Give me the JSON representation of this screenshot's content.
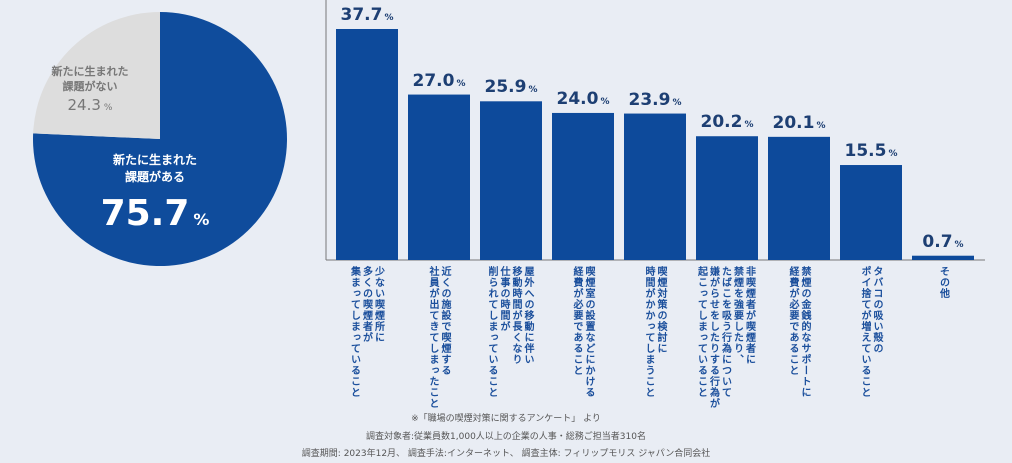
{
  "pie": {
    "slices": [
      {
        "label": "新たに生まれた\n課題がある",
        "line1": "新たに生まれた",
        "line2": "課題がある",
        "value": 75.7,
        "color": "#0f4c9c"
      },
      {
        "label": "新たに生まれた\n課題がない",
        "line1": "新たに生まれた",
        "line2": "課題がない",
        "value": 24.3,
        "color": "#dddddd"
      }
    ],
    "unit": "%"
  },
  "chart_data": {
    "type": "bar",
    "categories": [
      "少ない喫煙所に\n多くの喫煙者が\n集まってしまっていること",
      "近くの施設で喫煙する\n社員が出てきてしまったこと",
      "屋外への移動に伴い\n移動時間が長くなり\n仕事の時間が\n削られてしまっていること",
      "喫煙室の設置などにかける\n経費が必要であること",
      "喫煙対策の検討に\n時間がかかってしまうこと",
      "非喫煙者が喫煙者に\n禁煙を強要したり、\nたばこを吸う行為について\n嫌がらせをしたりする行為が\n起こってしまっていること",
      "禁煙の金銭的なサポートに\n経費が必要であること",
      "タバコの吸い殻の\nポイ捨てが増えていること",
      "その他"
    ],
    "values": [
      37.7,
      27.0,
      25.9,
      24.0,
      23.9,
      20.2,
      20.1,
      15.5,
      0.7
    ],
    "value_labels": [
      "37.7",
      "27.0",
      "25.9",
      "24.0",
      "23.9",
      "20.2",
      "20.1",
      "15.5",
      "0.7"
    ],
    "unit": "%",
    "ylim": [
      0,
      42
    ],
    "bar_color": "#0d4a9b",
    "grid": false
  },
  "footnote": {
    "source": "※「職場の喫煙対策に関するアンケート」 より",
    "subjects": "調査対象者:従業員数1,000人以上の企業の人事・総務ご担当者310名",
    "details": "調査期間: 2023年12月、 調査手法:インターネット、 調査主体: フィリップモリス ジャパン合同会社"
  }
}
